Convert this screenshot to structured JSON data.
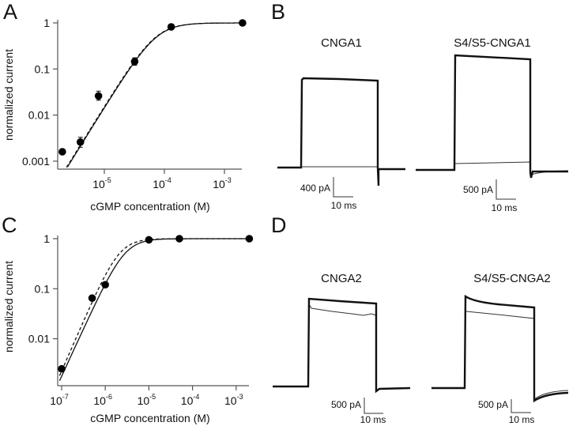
{
  "chart_data": [
    {
      "panel": "A",
      "type": "scatter",
      "xlabel": "cGMP concentration (M)",
      "ylabel": "normalized current",
      "xscale": "log",
      "yscale": "log",
      "xlim": [
        1.7e-06,
        0.002
      ],
      "ylim": [
        0.0007,
        1
      ],
      "x_ticks": [
        {
          "base": "10",
          "exp": "-5"
        },
        {
          "base": "10",
          "exp": "-4"
        },
        {
          "base": "10",
          "exp": "-3"
        }
      ],
      "x_tick_values": [
        1e-05,
        0.0001,
        0.001
      ],
      "y_ticks": [
        "1",
        "0.1",
        "0.01",
        "0.001"
      ],
      "y_tick_values": [
        1,
        0.1,
        0.01,
        0.001
      ],
      "points": [
        {
          "x": 2e-06,
          "y": 0.0016
        },
        {
          "x": 4e-06,
          "y": 0.0026,
          "ylo": 0.002,
          "yhi": 0.0033
        },
        {
          "x": 8e-06,
          "y": 0.026,
          "ylo": 0.021,
          "yhi": 0.033
        },
        {
          "x": 3.2e-05,
          "y": 0.145,
          "ylo": 0.12,
          "yhi": 0.175
        },
        {
          "x": 0.00013,
          "y": 0.82
        },
        {
          "x": 0.002,
          "y": 1.0
        }
      ],
      "fits": [
        {
          "style": "solid"
        },
        {
          "style": "dashed"
        }
      ]
    },
    {
      "panel": "C",
      "type": "scatter",
      "xlabel": "cGMP concentration (M)",
      "ylabel": "normalized current",
      "xscale": "log",
      "yscale": "log",
      "xlim": [
        8e-08,
        0.002
      ],
      "ylim": [
        0.0012,
        1
      ],
      "x_ticks": [
        {
          "base": "10",
          "exp": "-7"
        },
        {
          "base": "10",
          "exp": "-6"
        },
        {
          "base": "10",
          "exp": "-5"
        },
        {
          "base": "10",
          "exp": "-4"
        },
        {
          "base": "10",
          "exp": "-3"
        }
      ],
      "x_tick_values": [
        1e-07,
        1e-06,
        1e-05,
        0.0001,
        0.001
      ],
      "y_ticks": [
        "1",
        "0.1",
        "0.01"
      ],
      "y_tick_values": [
        1,
        0.1,
        0.01
      ],
      "points": [
        {
          "x": 1e-07,
          "y": 0.0025
        },
        {
          "x": 5e-07,
          "y": 0.065
        },
        {
          "x": 1e-06,
          "y": 0.12
        },
        {
          "x": 1e-05,
          "y": 0.95
        },
        {
          "x": 5e-05,
          "y": 1.0
        },
        {
          "x": 0.002,
          "y": 1.0
        }
      ],
      "fits": [
        {
          "style": "solid"
        },
        {
          "style": "dashed"
        }
      ]
    }
  ],
  "panels": {
    "A": {
      "letter": "A"
    },
    "B": {
      "letter": "B",
      "traces": [
        {
          "title": "CNGA1",
          "scale_current": "400 pA",
          "scale_time": "10 ms"
        },
        {
          "title": "S4/S5-CNGA1",
          "scale_current": "500 pA",
          "scale_time": "10 ms"
        }
      ]
    },
    "C": {
      "letter": "C"
    },
    "D": {
      "letter": "D",
      "traces": [
        {
          "title": "CNGA2",
          "scale_current": "500 pA",
          "scale_time": "10 ms"
        },
        {
          "title": "S4/S5-CNGA2",
          "scale_current": "500 pA",
          "scale_time": "10 ms"
        }
      ]
    }
  }
}
